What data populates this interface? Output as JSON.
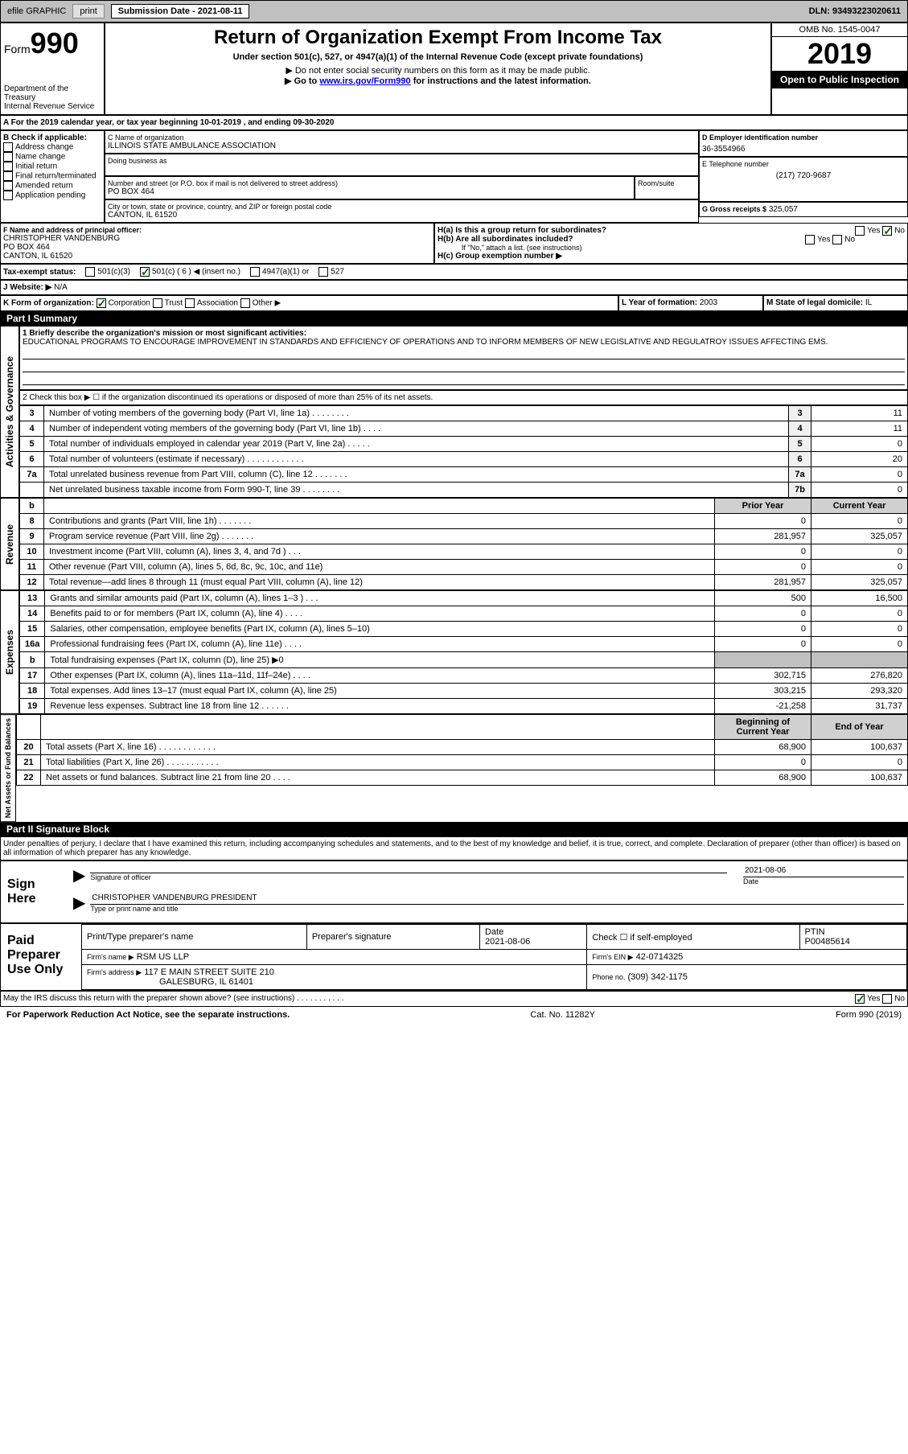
{
  "topbar": {
    "efile_label": "efile GRAPHIC",
    "print_btn": "print",
    "submission_label": "Submission Date - 2021-08-11",
    "dln": "DLN: 93493223020611"
  },
  "header": {
    "form_label": "Form",
    "form_number": "990",
    "dept": "Department of the Treasury\nInternal Revenue Service",
    "title": "Return of Organization Exempt From Income Tax",
    "subtitle": "Under section 501(c), 527, or 4947(a)(1) of the Internal Revenue Code (except private foundations)",
    "note1": "▶ Do not enter social security numbers on this form as it may be made public.",
    "note2_pre": "▶ Go to ",
    "note2_link": "www.irs.gov/Form990",
    "note2_post": " for instructions and the latest information.",
    "omb": "OMB No. 1545-0047",
    "year": "2019",
    "open_public": "Open to Public Inspection"
  },
  "line_a": "For the 2019 calendar year, or tax year beginning 10-01-2019   , and ending 09-30-2020",
  "box_b": {
    "header": "B Check if applicable:",
    "items": [
      "Address change",
      "Name change",
      "Initial return",
      "Final return/terminated",
      "Amended return",
      "Application pending"
    ]
  },
  "box_c": {
    "name_label": "C Name of organization",
    "name": "ILLINOIS STATE AMBULANCE ASSOCIATION",
    "dba_label": "Doing business as",
    "street_label": "Number and street (or P.O. box if mail is not delivered to street address)",
    "room_label": "Room/suite",
    "street": "PO BOX 464",
    "city_label": "City or town, state or province, country, and ZIP or foreign postal code",
    "city": "CANTON, IL  61520"
  },
  "box_d": {
    "label": "D Employer identification number",
    "value": "36-3554966"
  },
  "box_e": {
    "label": "E Telephone number",
    "value": "(217) 720-9687"
  },
  "box_g": {
    "label": "G Gross receipts $",
    "value": "325,057"
  },
  "box_f": {
    "label": "F Name and address of principal officer:",
    "name": "CHRISTOPHER VANDENBURG",
    "street": "PO BOX 464",
    "city": "CANTON, IL  61520"
  },
  "box_h": {
    "a_label": "H(a)  Is this a group return for subordinates?",
    "b_label": "H(b)  Are all subordinates included?",
    "b_note": "If \"No,\" attach a list. (see instructions)",
    "c_label": "H(c)  Group exemption number ▶",
    "yes": "Yes",
    "no": "No"
  },
  "box_i": {
    "label": "Tax-exempt status:",
    "opts": [
      "501(c)(3)",
      "501(c) ( 6 ) ◀ (insert no.)",
      "4947(a)(1) or",
      "527"
    ]
  },
  "box_j": {
    "label": "J   Website: ▶",
    "value": "N/A"
  },
  "box_k": {
    "label": "K Form of organization:",
    "opts": [
      "Corporation",
      "Trust",
      "Association",
      "Other ▶"
    ]
  },
  "box_l": {
    "label": "L Year of formation:",
    "value": "2003"
  },
  "box_m": {
    "label": "M State of legal domicile:",
    "value": "IL"
  },
  "part1": {
    "header": "Part I      Summary",
    "q1_label": "1  Briefly describe the organization's mission or most significant activities:",
    "q1_text": "EDUCATIONAL PROGRAMS TO ENCOURAGE IMPROVEMENT IN STANDARDS AND EFFICIENCY OF OPERATIONS AND TO INFORM MEMBERS OF NEW LEGISLATIVE AND REGULATROY ISSUES AFFECTING EMS.",
    "q2_label": "2   Check this box ▶ ☐  if the organization discontinued its operations or disposed of more than 25% of its net assets.",
    "col_prior": "Prior Year",
    "col_current": "Current Year",
    "col_begin": "Beginning of Current Year",
    "col_end": "End of Year",
    "sections": {
      "governance": "Activities & Governance",
      "revenue": "Revenue",
      "expenses": "Expenses",
      "net": "Net Assets or Fund Balances"
    },
    "gov_rows": [
      {
        "n": "3",
        "t": "Number of voting members of the governing body (Part VI, line 1a)  .   .   .   .   .   .   .   .",
        "lbl": "3",
        "v": "11"
      },
      {
        "n": "4",
        "t": "Number of independent voting members of the governing body (Part VI, line 1b)  .   .   .   .",
        "lbl": "4",
        "v": "11"
      },
      {
        "n": "5",
        "t": "Total number of individuals employed in calendar year 2019 (Part V, line 2a)  .   .   .   .   .",
        "lbl": "5",
        "v": "0"
      },
      {
        "n": "6",
        "t": "Total number of volunteers (estimate if necessary)   .   .   .   .   .   .   .   .   .   .   .   .",
        "lbl": "6",
        "v": "20"
      },
      {
        "n": "7a",
        "t": "Total unrelated business revenue from Part VIII, column (C), line 12  .   .   .   .   .   .   .",
        "lbl": "7a",
        "v": "0"
      },
      {
        "n": "",
        "t": "Net unrelated business taxable income from Form 990-T, line 39   .   .   .   .   .   .   .   .",
        "lbl": "7b",
        "v": "0"
      }
    ],
    "rev_rows": [
      {
        "n": "8",
        "t": "Contributions and grants (Part VIII, line 1h)   .   .   .   .   .   .   .",
        "p": "0",
        "c": "0"
      },
      {
        "n": "9",
        "t": "Program service revenue (Part VIII, line 2g)   .   .   .   .   .   .   .",
        "p": "281,957",
        "c": "325,057"
      },
      {
        "n": "10",
        "t": "Investment income (Part VIII, column (A), lines 3, 4, and 7d )   .   .   .",
        "p": "0",
        "c": "0"
      },
      {
        "n": "11",
        "t": "Other revenue (Part VIII, column (A), lines 5, 6d, 8c, 9c, 10c, and 11e)",
        "p": "0",
        "c": "0"
      },
      {
        "n": "12",
        "t": "Total revenue—add lines 8 through 11 (must equal Part VIII, column (A), line 12)",
        "p": "281,957",
        "c": "325,057"
      }
    ],
    "exp_rows": [
      {
        "n": "13",
        "t": "Grants and similar amounts paid (Part IX, column (A), lines 1–3 )  .   .   .",
        "p": "500",
        "c": "16,500"
      },
      {
        "n": "14",
        "t": "Benefits paid to or for members (Part IX, column (A), line 4)  .   .   .   .",
        "p": "0",
        "c": "0"
      },
      {
        "n": "15",
        "t": "Salaries, other compensation, employee benefits (Part IX, column (A), lines 5–10)",
        "p": "0",
        "c": "0"
      },
      {
        "n": "16a",
        "t": "Professional fundraising fees (Part IX, column (A), line 11e)  .   .   .   .",
        "p": "0",
        "c": "0"
      },
      {
        "n": "b",
        "t": "Total fundraising expenses (Part IX, column (D), line 25) ▶0",
        "p": "",
        "c": "",
        "gray": true
      },
      {
        "n": "17",
        "t": "Other expenses (Part IX, column (A), lines 11a–11d, 11f–24e)  .   .   .   .",
        "p": "302,715",
        "c": "276,820"
      },
      {
        "n": "18",
        "t": "Total expenses. Add lines 13–17 (must equal Part IX, column (A), line 25)",
        "p": "303,215",
        "c": "293,320"
      },
      {
        "n": "19",
        "t": "Revenue less expenses. Subtract line 18 from line 12  .   .   .   .   .   .",
        "p": "-21,258",
        "c": "31,737"
      }
    ],
    "net_rows": [
      {
        "n": "20",
        "t": "Total assets (Part X, line 16)  .   .   .   .   .   .   .   .   .   .   .   .",
        "p": "68,900",
        "c": "100,637"
      },
      {
        "n": "21",
        "t": "Total liabilities (Part X, line 26)  .   .   .   .   .   .   .   .   .   .   .",
        "p": "0",
        "c": "0"
      },
      {
        "n": "22",
        "t": "Net assets or fund balances. Subtract line 21 from line 20  .   .   .   .",
        "p": "68,900",
        "c": "100,637"
      }
    ]
  },
  "part2": {
    "header": "Part II      Signature Block",
    "declaration": "Under penalties of perjury, I declare that I have examined this return, including accompanying schedules and statements, and to the best of my knowledge and belief, it is true, correct, and complete. Declaration of preparer (other than officer) is based on all information of which preparer has any knowledge.",
    "sign_here": "Sign Here",
    "sig_officer": "Signature of officer",
    "sig_date_label": "Date",
    "sig_date": "2021-08-06",
    "typed_name": "CHRISTOPHER VANDENBURG  PRESIDENT",
    "typed_label": "Type or print name and title",
    "paid": "Paid Preparer Use Only",
    "prep_cols": [
      "Print/Type preparer's name",
      "Preparer's signature",
      "Date",
      "",
      "PTIN"
    ],
    "prep_date": "2021-08-06",
    "prep_check": "Check ☐ if self-employed",
    "ptin": "P00485614",
    "firm_name_label": "Firm's name    ▶",
    "firm_name": "RSM US LLP",
    "firm_ein_label": "Firm's EIN ▶",
    "firm_ein": "42-0714325",
    "firm_addr_label": "Firm's address ▶",
    "firm_addr": "117 E MAIN STREET SUITE 210",
    "firm_city": "GALESBURG, IL  61401",
    "phone_label": "Phone no.",
    "phone": "(309) 342-1175",
    "discuss": "May the IRS discuss this return with the preparer shown above? (see instructions)   .   .   .   .   .   .   .   .   .   .   .",
    "yes": "Yes",
    "no": "No"
  },
  "footer": {
    "paperwork": "For Paperwork Reduction Act Notice, see the separate instructions.",
    "cat": "Cat. No. 11282Y",
    "form": "Form 990 (2019)"
  }
}
